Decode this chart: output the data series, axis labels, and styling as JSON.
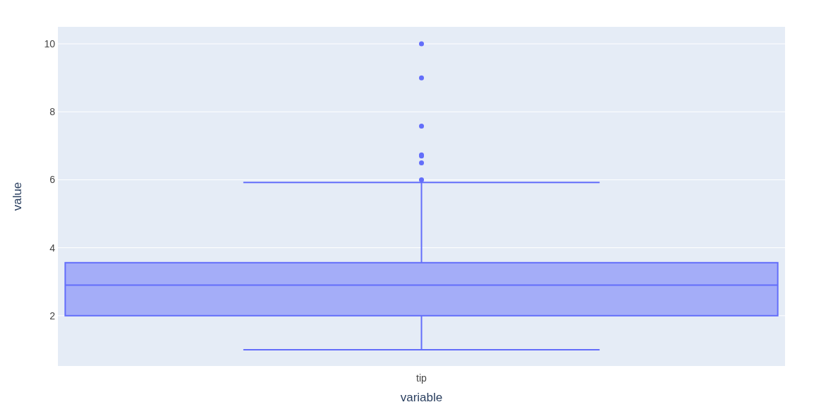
{
  "chart_data": {
    "type": "box",
    "xlabel": "variable",
    "ylabel": "value",
    "categories": [
      "tip"
    ],
    "series": [
      {
        "color": "#636efa",
        "boxes": [
          {
            "low": 1,
            "q1": 2,
            "median": 2.9,
            "q3": 3.56,
            "high": 5.92,
            "outliers": [
              6,
              6.5,
              6.7,
              6.73,
              7.58,
              9,
              10
            ]
          }
        ]
      }
    ],
    "ylim": [
      0.52,
      10.5
    ],
    "yticks": [
      2,
      4,
      6,
      8,
      10
    ],
    "grid": "y",
    "marker": "circle"
  }
}
